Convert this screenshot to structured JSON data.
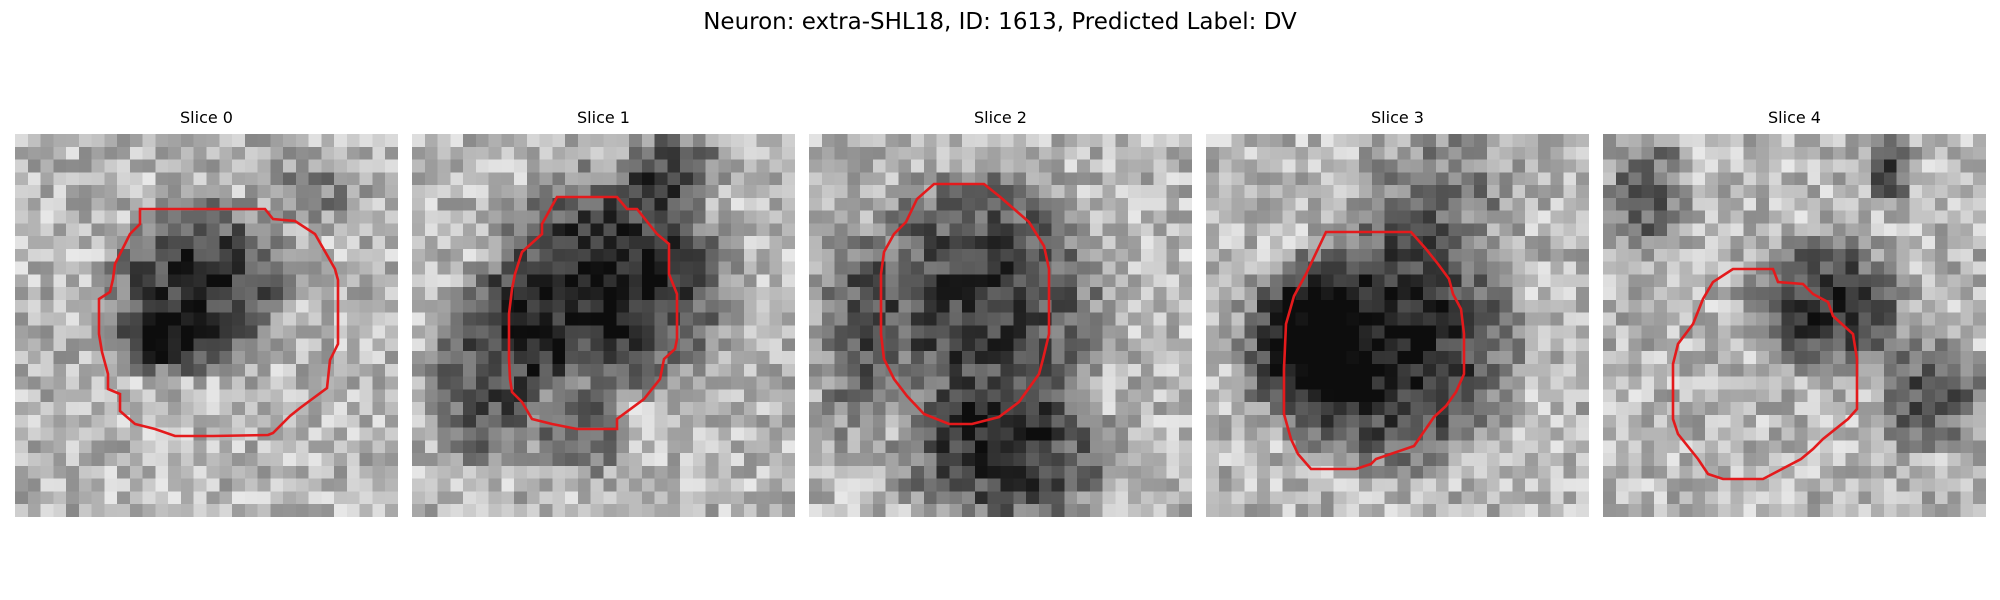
{
  "figure": {
    "title": "Neuron: extra-SHL18, ID: 1613, Predicted Label: DV"
  },
  "colors": {
    "contour": "#e41a1c",
    "background": "#ffffff",
    "colormap": "grayscale"
  },
  "slices": [
    {
      "title": "Slice 0"
    },
    {
      "title": "Slice 1"
    },
    {
      "title": "Slice 2"
    },
    {
      "title": "Slice 3"
    },
    {
      "title": "Slice 4"
    }
  ]
}
